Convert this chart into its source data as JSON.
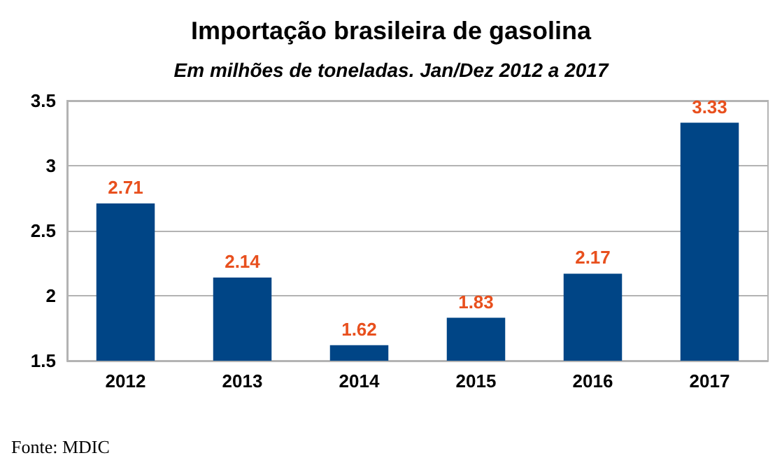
{
  "chart_data": {
    "type": "bar",
    "title": "Importação brasileira de gasolina",
    "subtitle": "Em milhões de toneladas. Jan/Dez 2012 a 2017",
    "categories": [
      "2012",
      "2013",
      "2014",
      "2015",
      "2016",
      "2017"
    ],
    "values": [
      2.71,
      2.14,
      1.62,
      1.83,
      2.17,
      3.33
    ],
    "color": "#004586",
    "ylim": [
      1.5,
      3.5
    ],
    "yticks": [
      1.5,
      2,
      2.5,
      3,
      3.5
    ],
    "grid": "y",
    "data_labels": true,
    "annotations": [
      "Fonte: MDIC"
    ]
  }
}
